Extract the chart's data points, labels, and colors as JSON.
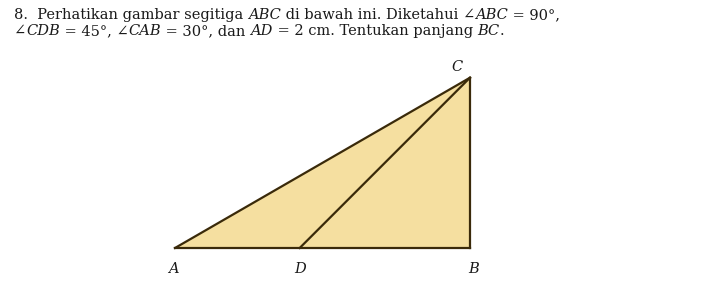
{
  "background_color": "#ffffff",
  "triangle_fill": "#f5dfa0",
  "triangle_edge": "#3a2a0a",
  "label_A": "A",
  "label_B": "B",
  "label_C": "C",
  "label_D": "D",
  "text_color": "#1a1a1a",
  "line_width": 1.6,
  "font_size_label": 10.5,
  "font_size_text": 10.5,
  "fig_width": 7.14,
  "fig_height": 3.05,
  "dpi": 100,
  "line1_parts": [
    [
      "8.  Perhatikan gambar segitiga ",
      false
    ],
    [
      "ABC",
      true
    ],
    [
      " di bawah ini. Diketahui ∠",
      false
    ],
    [
      "ABC",
      true
    ],
    [
      " = 90°,",
      false
    ]
  ],
  "line2_parts": [
    [
      "∠",
      false
    ],
    [
      "CDB",
      true
    ],
    [
      " = 45°, ∠",
      false
    ],
    [
      "CAB",
      true
    ],
    [
      " = 30°, dan ",
      false
    ],
    [
      "AD",
      true
    ],
    [
      " = 2 cm. Tentukan panjang ",
      false
    ],
    [
      "BC",
      true
    ],
    [
      ".",
      false
    ]
  ]
}
